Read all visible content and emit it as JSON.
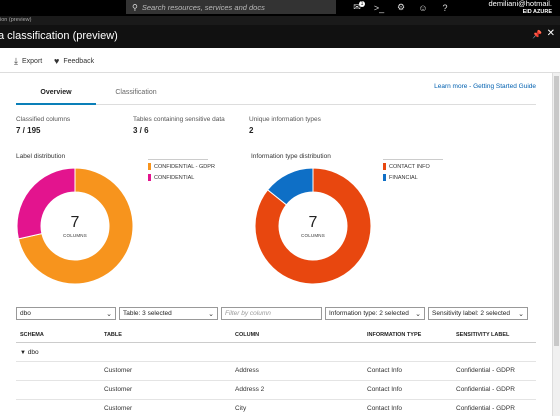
{
  "topbar": {
    "search_placeholder": "Search resources, services and docs",
    "notifications_count": "1",
    "account_email": "demiliani@hotmail.",
    "account_directory": "EID AZURE"
  },
  "breadcrumb": "ion (preview)",
  "blade": {
    "title": "a classification (preview)"
  },
  "toolbar": {
    "export_label": "Export",
    "feedback_label": "Feedback"
  },
  "tabs": [
    {
      "label": "Overview",
      "active": true
    },
    {
      "label": "Classification",
      "active": false
    }
  ],
  "learn_more": "Learn more - Getting Started Guide",
  "stats": [
    {
      "label": "Classified columns",
      "value": "7 / 195"
    },
    {
      "label": "Tables containing sensitive data",
      "value": "3 / 6"
    },
    {
      "label": "Unique information types",
      "value": "2"
    }
  ],
  "colors": {
    "orange": "#f7941d",
    "magenta": "#e3148e",
    "red_orange": "#e8470f",
    "blue": "#0e6fc6",
    "accent": "#0a7fb8"
  },
  "label_distribution": {
    "title": "Label distribution",
    "center_value": "7",
    "center_caption": "COLUMNS",
    "chart_data": {
      "type": "pie",
      "categories": [
        "CONFIDENTIAL - GDPR",
        "CONFIDENTIAL"
      ],
      "values": [
        5,
        2
      ],
      "colors": [
        "#f7941d",
        "#e3148e"
      ]
    }
  },
  "info_type_distribution": {
    "title": "Information type distribution",
    "center_value": "7",
    "center_caption": "COLUMNS",
    "chart_data": {
      "type": "pie",
      "categories": [
        "CONTACT INFO",
        "FINANCIAL"
      ],
      "values": [
        6,
        1
      ],
      "colors": [
        "#e8470f",
        "#0e6fc6"
      ]
    }
  },
  "filters": {
    "schema": "dbo",
    "table": "Table: 3 selected",
    "column_placeholder": "Filter by column",
    "info_type": "Information type: 2 selected",
    "sensitivity": "Sensitivity label: 2 selected"
  },
  "table": {
    "headers": [
      "SCHEMA",
      "TABLE",
      "COLUMN",
      "INFORMATION TYPE",
      "SENSITIVITY LABEL"
    ],
    "group_label": "dbo",
    "rows": [
      {
        "table": "Customer",
        "column": "Address",
        "info_type": "Contact Info",
        "label": "Confidential - GDPR"
      },
      {
        "table": "Customer",
        "column": "Address 2",
        "info_type": "Contact Info",
        "label": "Confidential - GDPR"
      },
      {
        "table": "Customer",
        "column": "City",
        "info_type": "Contact Info",
        "label": "Confidential - GDPR"
      }
    ]
  }
}
